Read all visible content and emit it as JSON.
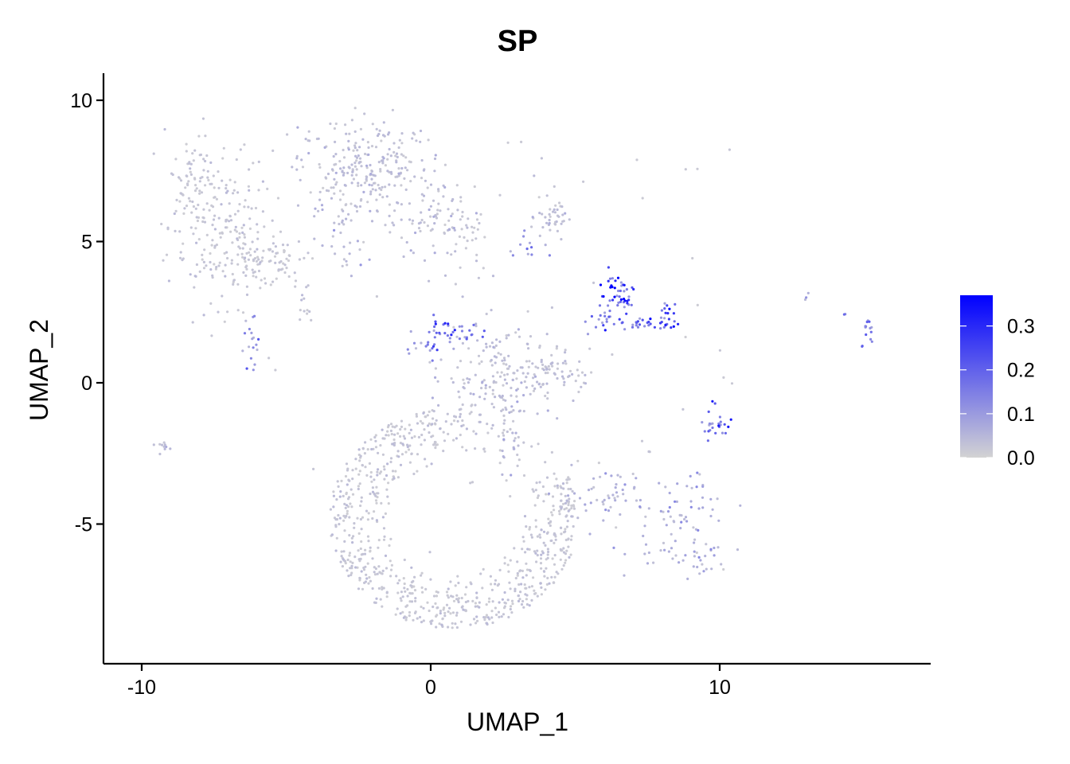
{
  "chart_data": {
    "type": "scatter",
    "title": "SP",
    "xlabel": "UMAP_1",
    "ylabel": "UMAP_2",
    "xlim": [
      -11.4,
      17.2
    ],
    "ylim": [
      -9.8,
      10.9
    ],
    "x_ticks": [
      {
        "value": -10,
        "label": "-10"
      },
      {
        "value": 0,
        "label": "0"
      },
      {
        "value": 10,
        "label": "10"
      }
    ],
    "y_ticks": [
      {
        "value": 10,
        "label": "10"
      },
      {
        "value": 5,
        "label": "5"
      },
      {
        "value": 0,
        "label": "0"
      },
      {
        "value": -5,
        "label": "-5"
      }
    ],
    "grid": false,
    "colors": {
      "low": "#d3d3d3",
      "high": "#0000ff"
    },
    "legend": {
      "position": "right",
      "min": 0.0,
      "max": 0.37,
      "ticks": [
        {
          "value": 0.0,
          "label": "0.0"
        },
        {
          "value": 0.1,
          "label": "0.1"
        },
        {
          "value": 0.2,
          "label": "0.2"
        },
        {
          "value": 0.3,
          "label": "0.3"
        }
      ]
    },
    "clusters": [
      {
        "x": -7.3,
        "y": 5.6,
        "sx": 0.9,
        "sy": 1.5,
        "n": 170,
        "expr": 0.02
      },
      {
        "x": -6.0,
        "y": 4.3,
        "sx": 0.9,
        "sy": 0.45,
        "n": 110,
        "expr": 0.02
      },
      {
        "x": -8.3,
        "y": 7.4,
        "sx": 0.45,
        "sy": 0.7,
        "n": 50,
        "expr": 0.02
      },
      {
        "x": -6.2,
        "y": 1.5,
        "sx": 0.15,
        "sy": 0.6,
        "n": 18,
        "expr": 0.1
      },
      {
        "x": -9.3,
        "y": -2.2,
        "sx": 0.12,
        "sy": 0.08,
        "n": 10,
        "expr": 0.03
      },
      {
        "x": -4.4,
        "y": 2.8,
        "sx": 0.15,
        "sy": 0.5,
        "n": 12,
        "expr": 0.02
      },
      {
        "x": -2.3,
        "y": 7.6,
        "sx": 1.2,
        "sy": 0.9,
        "n": 260,
        "expr": 0.03
      },
      {
        "x": 0.3,
        "y": 5.8,
        "sx": 0.8,
        "sy": 0.7,
        "n": 70,
        "expr": 0.03
      },
      {
        "x": -2.9,
        "y": 5.0,
        "sx": 0.3,
        "sy": 0.6,
        "n": 25,
        "expr": 0.05
      },
      {
        "x": 1.2,
        "y": 4.8,
        "sx": 0.4,
        "sy": 0.8,
        "n": 30,
        "expr": 0.02
      },
      {
        "x": 4.2,
        "y": 5.8,
        "sx": 0.3,
        "sy": 0.3,
        "n": 40,
        "expr": 0.03
      },
      {
        "x": 3.3,
        "y": 4.8,
        "sx": 0.3,
        "sy": 0.4,
        "n": 12,
        "expr": 0.12
      },
      {
        "x": 0.8,
        "y": 1.8,
        "sx": 0.6,
        "sy": 0.25,
        "n": 35,
        "expr": 0.14
      },
      {
        "x": 0.0,
        "y": 1.3,
        "sx": 0.3,
        "sy": 0.2,
        "n": 15,
        "expr": 0.12
      },
      {
        "x": 2.5,
        "y": 0.2,
        "sx": 1.0,
        "sy": 0.8,
        "n": 170,
        "expr": 0.03
      },
      {
        "x": 4.3,
        "y": 0.4,
        "sx": 0.6,
        "sy": 0.4,
        "n": 50,
        "expr": 0.03
      },
      {
        "x": 2.8,
        "y": -1.8,
        "sx": 0.2,
        "sy": 0.6,
        "n": 25,
        "expr": 0.04
      },
      {
        "x": 6.5,
        "y": 3.2,
        "sx": 0.35,
        "sy": 0.45,
        "n": 45,
        "expr": 0.22
      },
      {
        "x": 7.5,
        "y": 2.1,
        "sx": 0.7,
        "sy": 0.12,
        "n": 40,
        "expr": 0.2
      },
      {
        "x": 6.0,
        "y": 2.2,
        "sx": 0.3,
        "sy": 0.3,
        "n": 12,
        "expr": 0.15
      },
      {
        "x": 8.2,
        "y": 2.6,
        "sx": 0.12,
        "sy": 0.2,
        "n": 10,
        "expr": 0.18
      },
      {
        "x": 15.1,
        "y": 1.9,
        "sx": 0.1,
        "sy": 0.4,
        "n": 14,
        "expr": 0.15
      },
      {
        "x": 13.0,
        "y": 3.0,
        "sx": 0.05,
        "sy": 0.1,
        "n": 3,
        "expr": 0.05
      },
      {
        "x": 14.3,
        "y": 2.4,
        "sx": 0.05,
        "sy": 0.05,
        "n": 2,
        "expr": 0.15
      },
      {
        "x": 9.9,
        "y": -1.4,
        "sx": 0.3,
        "sy": 0.3,
        "n": 25,
        "expr": 0.15
      },
      {
        "x": 6.0,
        "y": -4.0,
        "sx": 0.8,
        "sy": 0.5,
        "n": 50,
        "expr": 0.05
      },
      {
        "x": 8.8,
        "y": -4.3,
        "sx": 0.7,
        "sy": 0.6,
        "n": 45,
        "expr": 0.06
      },
      {
        "x": 8.3,
        "y": -6.0,
        "sx": 0.8,
        "sy": 0.5,
        "n": 30,
        "expr": 0.05
      },
      {
        "x": 9.3,
        "y": -6.3,
        "sx": 0.3,
        "sy": 0.2,
        "n": 15,
        "expr": 0.06
      },
      {
        "x": 7.6,
        "y": -2.4,
        "sx": 0.05,
        "sy": 0.05,
        "n": 3,
        "expr": 0.02
      }
    ],
    "ring": {
      "cx": 0.8,
      "cy": -4.8,
      "rx_outer": 4.3,
      "ry_outer": 3.9,
      "rx_inner": 2.1,
      "ry_inner": 2.0,
      "n": 900,
      "expr": 0.02
    },
    "scatter_noise": {
      "n": 60,
      "expr": 0.02
    }
  }
}
